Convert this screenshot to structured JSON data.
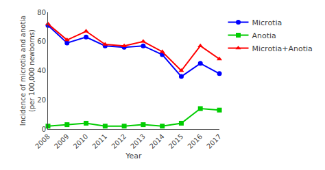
{
  "chart_data": {
    "type": "line",
    "x": [
      2008,
      2009,
      2010,
      2011,
      2012,
      2013,
      2014,
      2015,
      2016,
      2017
    ],
    "series": [
      {
        "name": "Microtia",
        "color": "#0000FF",
        "marker": "circle",
        "values": [
          71,
          59,
          63,
          57,
          56,
          57,
          51,
          36,
          45,
          38
        ]
      },
      {
        "name": "Anotia",
        "color": "#00CC00",
        "marker": "square",
        "values": [
          2,
          3,
          4,
          2,
          2,
          3,
          2,
          4,
          14,
          13
        ]
      },
      {
        "name": "Microtia+Anotia",
        "color": "#FF0000",
        "marker": "triangle-up",
        "values": [
          72,
          61,
          67,
          58,
          57,
          60,
          53,
          40,
          57,
          48
        ]
      }
    ],
    "x_label": "Year",
    "y_label": "Incidence of microtia and anotia\n(per 100,000 newborns)",
    "xlim": [
      2008,
      2017
    ],
    "xticks": [
      2008,
      2009,
      2010,
      2011,
      2012,
      2013,
      2014,
      2015,
      2016,
      2017
    ],
    "ylim": [
      0,
      80
    ],
    "yticks": [
      0,
      20,
      40,
      60,
      80
    ],
    "grid": false,
    "legend": "right"
  }
}
